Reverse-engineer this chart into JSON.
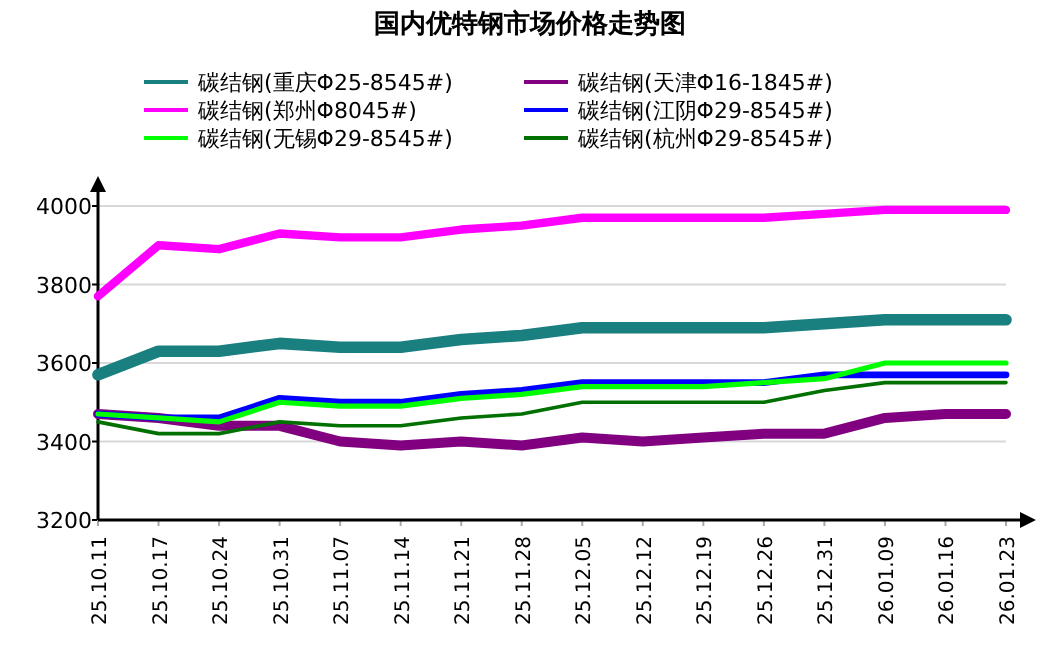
{
  "chart_data": {
    "type": "line",
    "title": "国内优特钢市场价格走势图",
    "categories": [
      "25.10.11",
      "25.10.17",
      "25.10.24",
      "25.10.31",
      "25.11.07",
      "25.11.14",
      "25.11.21",
      "25.11.28",
      "25.12.05",
      "25.12.12",
      "25.12.19",
      "25.12.26",
      "25.12.31",
      "26.01.09",
      "26.01.16",
      "26.01.23"
    ],
    "series": [
      {
        "name": "碳结钢(重庆Φ25-8545#)",
        "color": "#1a7f7f",
        "values": [
          3570,
          3630,
          3630,
          3650,
          3640,
          3640,
          3660,
          3670,
          3690,
          3690,
          3690,
          3690,
          3700,
          3710,
          3710,
          3710
        ]
      },
      {
        "name": "碳结钢(天津Φ16-1845#)",
        "color": "#800080",
        "values": [
          3470,
          3460,
          3440,
          3440,
          3400,
          3390,
          3400,
          3390,
          3410,
          3400,
          3410,
          3420,
          3420,
          3460,
          3470,
          3470
        ]
      },
      {
        "name": "碳结钢(郑州Φ8045#)",
        "color": "#ff00ff",
        "values": [
          3770,
          3900,
          3890,
          3930,
          3920,
          3920,
          3940,
          3950,
          3970,
          3970,
          3970,
          3970,
          3980,
          3990,
          3990,
          3990
        ]
      },
      {
        "name": "碳结钢(江阴Φ29-8545#)",
        "color": "#0000ff",
        "values": [
          3470,
          3460,
          3460,
          3510,
          3500,
          3500,
          3520,
          3530,
          3550,
          3550,
          3550,
          3550,
          3570,
          3570,
          3570,
          3570
        ]
      },
      {
        "name": "碳结钢(无锡Φ29-8545#)",
        "color": "#00ff00",
        "values": [
          3470,
          3460,
          3450,
          3500,
          3490,
          3490,
          3510,
          3520,
          3540,
          3540,
          3540,
          3550,
          3560,
          3600,
          3600,
          3600
        ]
      },
      {
        "name": "碳结钢(杭州Φ29-8545#)",
        "color": "#007000",
        "values": [
          3450,
          3420,
          3420,
          3450,
          3440,
          3440,
          3460,
          3470,
          3500,
          3500,
          3500,
          3500,
          3530,
          3550,
          3550,
          3550
        ]
      }
    ],
    "ylim": [
      3200,
      4000
    ],
    "yticks": [
      3200,
      3400,
      3600,
      3800,
      4000
    ],
    "grid": "y",
    "legend": "top",
    "marker": "none",
    "line_style": "solid"
  }
}
